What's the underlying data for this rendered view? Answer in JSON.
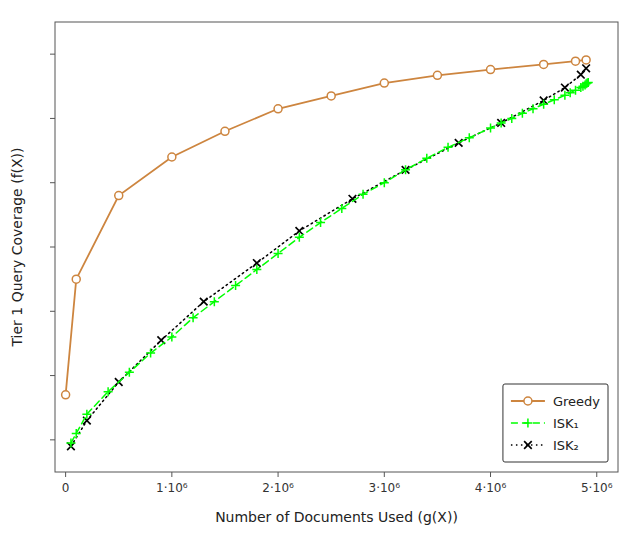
{
  "chart_data": {
    "type": "line",
    "xlabel": "Number of Documents Used (g(X))",
    "ylabel": "Tier 1 Query Coverage (f(X))",
    "xlim": [
      -100000,
      5200000
    ],
    "xticks": [
      0,
      {
        "value": 1000000,
        "label": "1·10⁶"
      },
      {
        "value": 2000000,
        "label": "2·10⁶"
      },
      {
        "value": 3000000,
        "label": "3·10⁶"
      },
      {
        "value": 4000000,
        "label": "4·10⁶"
      },
      {
        "value": 5000000,
        "label": "5·10⁶"
      }
    ],
    "ylim": [
      0.25,
      0.95
    ],
    "yticks": [
      0.3,
      0.4,
      0.5,
      0.6,
      0.7,
      0.8,
      0.9
    ],
    "tick_labels": "x",
    "grid": false,
    "legend": "lower right",
    "series": [
      {
        "name": "Greedy",
        "color": "#CD853F",
        "line_style": "solid",
        "marker": "circle",
        "x": [
          0,
          100000,
          500000,
          1000000,
          1500000,
          2000000,
          2500000,
          3000000,
          3500000,
          4000000,
          4500000,
          4800000,
          4900000
        ],
        "values": [
          0.37,
          0.55,
          0.68,
          0.74,
          0.78,
          0.815,
          0.835,
          0.855,
          0.867,
          0.876,
          0.884,
          0.889,
          0.891
        ]
      },
      {
        "name": "ISK₁",
        "color": "#00FF00",
        "line_style": "dashed",
        "marker": "plus",
        "x": [
          50000,
          100000,
          200000,
          400000,
          600000,
          800000,
          1000000,
          1200000,
          1400000,
          1600000,
          1800000,
          2000000,
          2200000,
          2400000,
          2600000,
          2800000,
          3000000,
          3200000,
          3400000,
          3600000,
          3800000,
          4000000,
          4100000,
          4200000,
          4300000,
          4400000,
          4500000,
          4600000,
          4700000,
          4750000,
          4800000,
          4850000,
          4870000,
          4890000,
          4900000,
          4910000,
          4920000
        ],
        "values": [
          0.295,
          0.31,
          0.34,
          0.375,
          0.405,
          0.435,
          0.46,
          0.49,
          0.515,
          0.54,
          0.565,
          0.59,
          0.615,
          0.638,
          0.66,
          0.682,
          0.7,
          0.72,
          0.738,
          0.755,
          0.77,
          0.785,
          0.793,
          0.8,
          0.808,
          0.815,
          0.822,
          0.829,
          0.836,
          0.84,
          0.844,
          0.848,
          0.85,
          0.852,
          0.854,
          0.855,
          0.856
        ]
      },
      {
        "name": "ISK₂",
        "color": "#000000",
        "line_style": "dotted",
        "marker": "x",
        "x": [
          50000,
          200000,
          500000,
          900000,
          1300000,
          1800000,
          2200000,
          2700000,
          3200000,
          3700000,
          4100000,
          4500000,
          4700000,
          4850000,
          4900000
        ],
        "values": [
          0.29,
          0.33,
          0.39,
          0.455,
          0.515,
          0.575,
          0.625,
          0.675,
          0.72,
          0.762,
          0.793,
          0.828,
          0.848,
          0.868,
          0.878
        ]
      }
    ]
  }
}
